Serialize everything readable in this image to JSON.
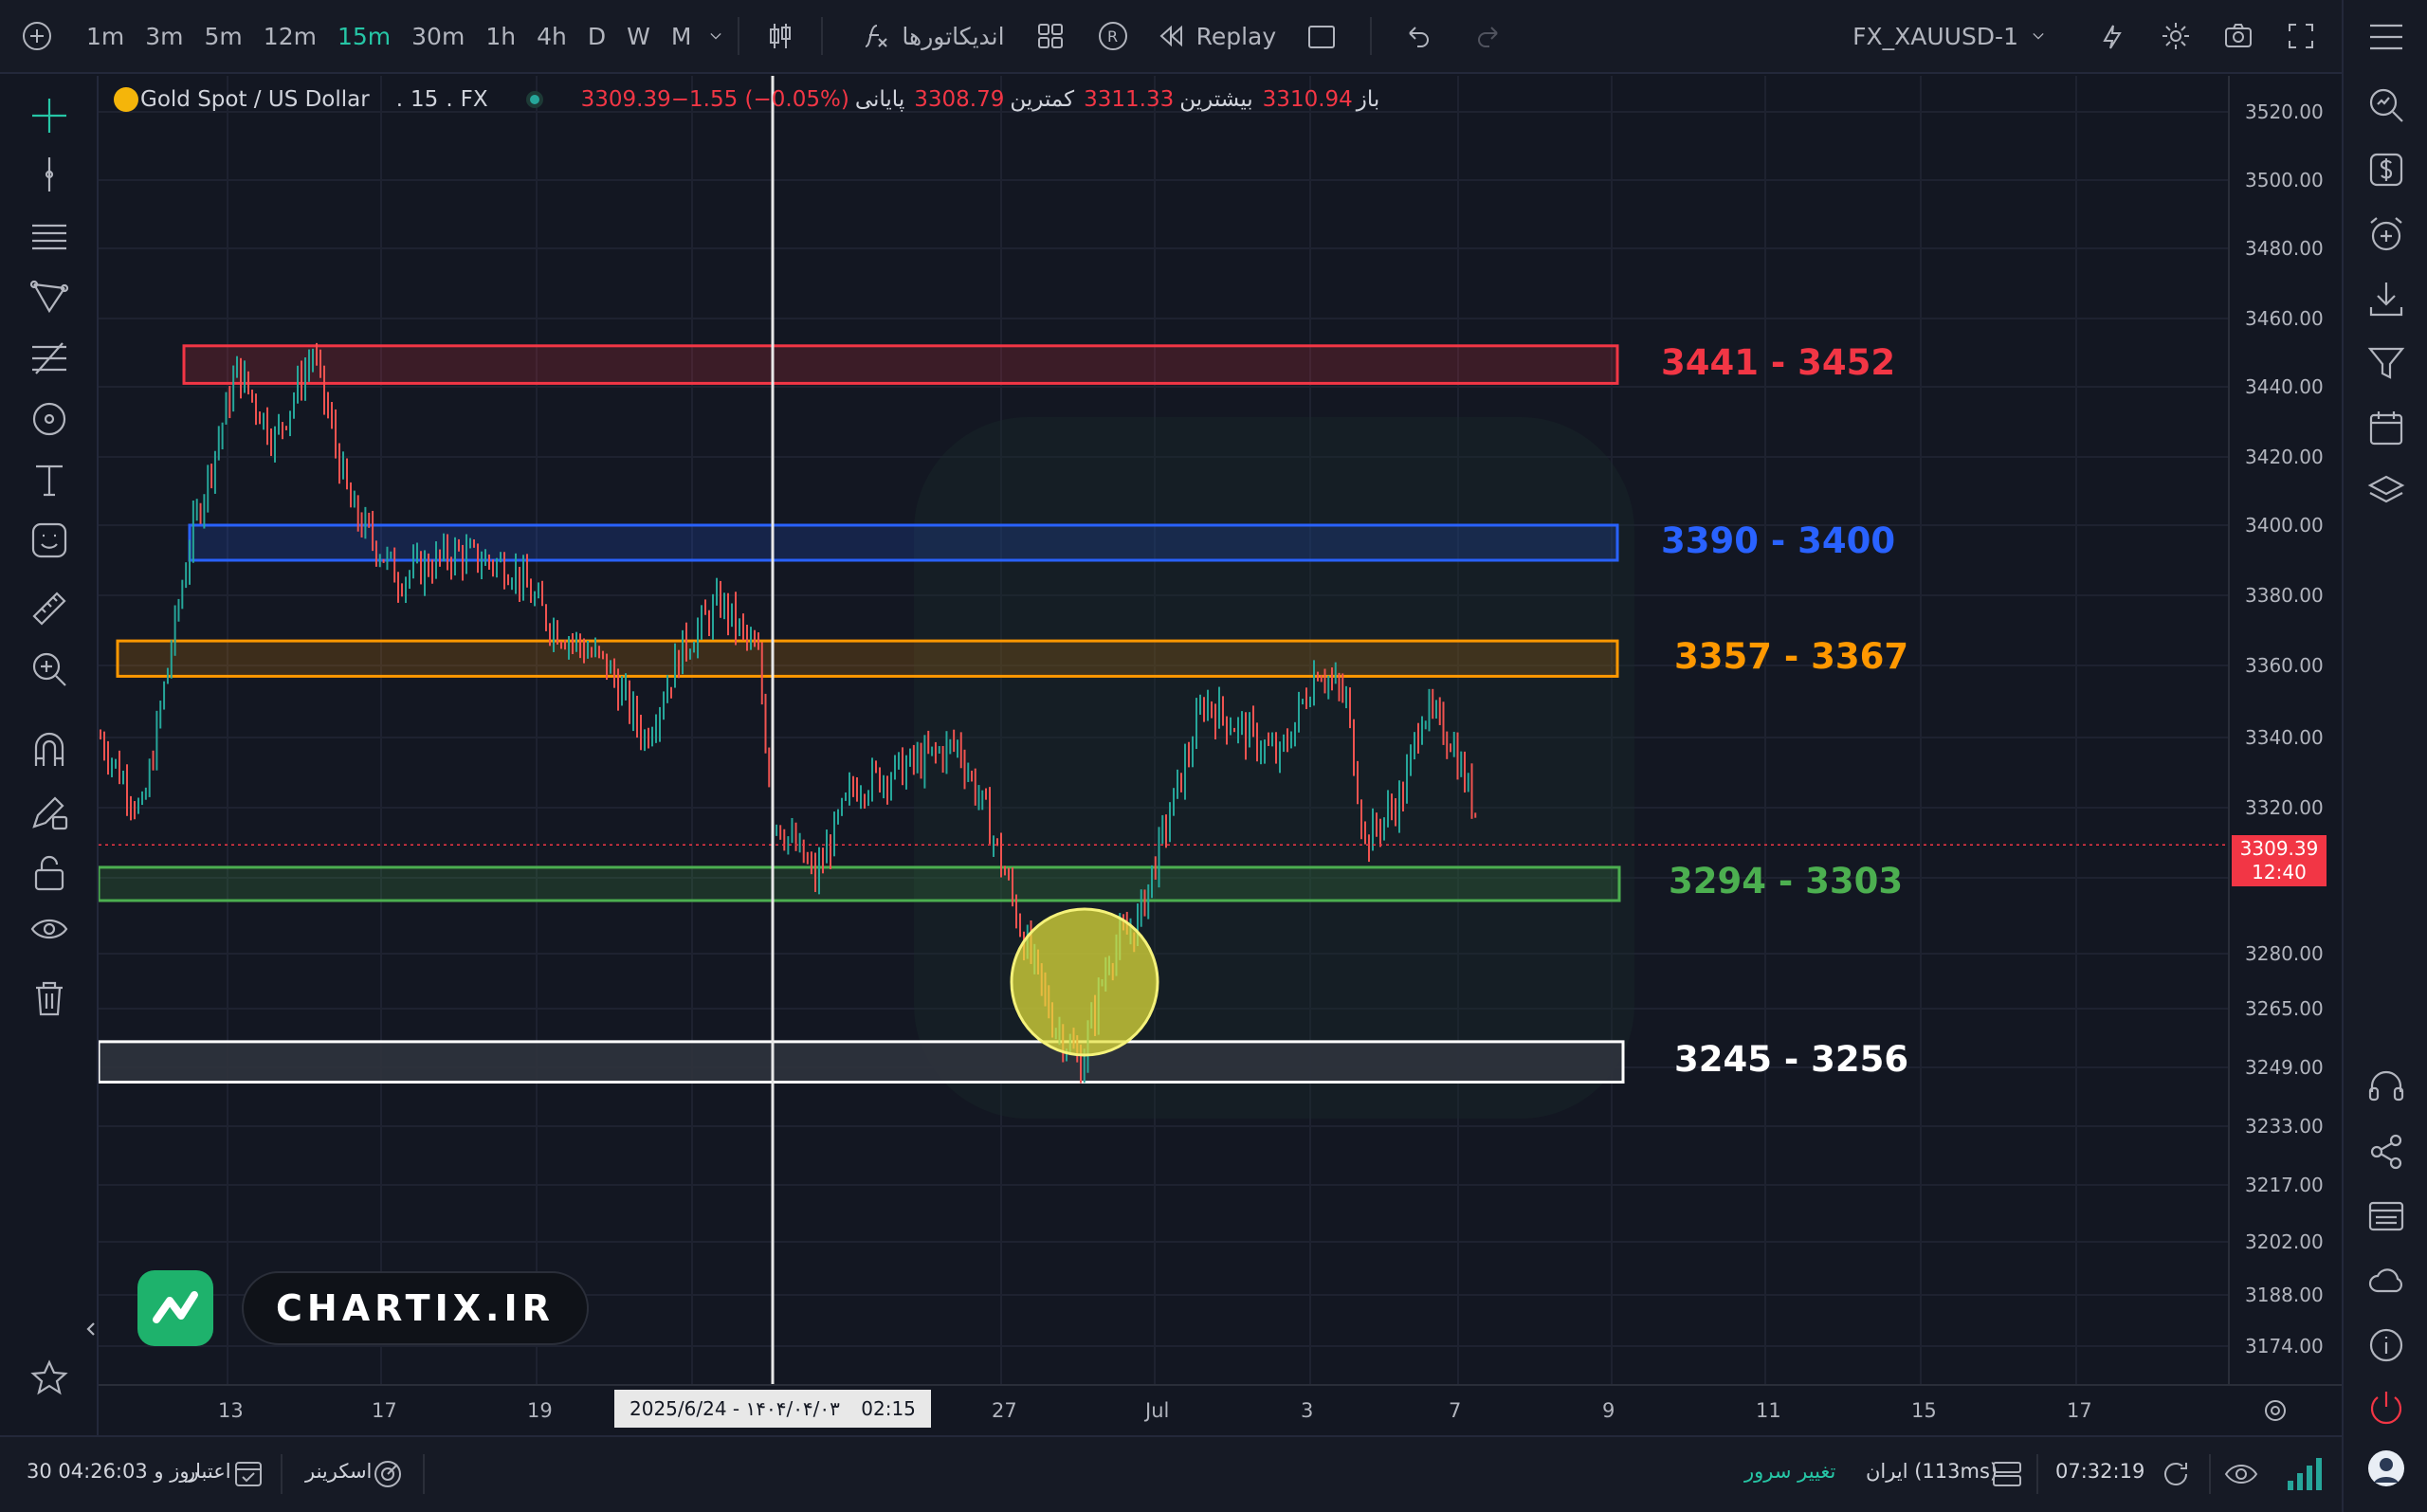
{
  "toolbar": {
    "timeframes": [
      "1m",
      "3m",
      "5m",
      "12m",
      "15m",
      "30m",
      "1h",
      "4h",
      "D",
      "W",
      "M"
    ],
    "active_timeframe": "15m",
    "indicators_label": "اندیکاتورها",
    "replay_label": "Replay",
    "symbol": "FX_XAUUSD-1"
  },
  "legend": {
    "symbol_name": "Gold Spot / US Dollar",
    "interval": "15",
    "exchange": "FX",
    "open_label": "باز",
    "open_value": "3310.94",
    "high_label": "بیشترین",
    "high_value": "3311.33",
    "low_label": "کمترین",
    "low_value": "3308.79",
    "close_label": "پایانی",
    "close_value": "3309.39",
    "change": "−1.55 (−0.05%)"
  },
  "price_axis": {
    "ticks": [
      "3520.00",
      "3500.00",
      "3480.00",
      "3460.00",
      "3440.00",
      "3420.00",
      "3400.00",
      "3380.00",
      "3360.00",
      "3340.00",
      "3320.00",
      "3300.00",
      "3280.00",
      "3265.00",
      "3249.00",
      "3233.00",
      "3217.00",
      "3202.00",
      "3188.00",
      "3174.00"
    ],
    "last_price": "3309.39",
    "countdown": "12:40"
  },
  "time_axis": {
    "ticks": [
      "13",
      "17",
      "19",
      "27",
      "Jul",
      "3",
      "7",
      "9",
      "11",
      "15",
      "17"
    ],
    "crosshair_date": "2025/6/24 - ۱۴۰۴/۰۴/۰۳",
    "crosshair_time": "02:15"
  },
  "zones": [
    {
      "label": "3441 - 3452",
      "color": "#f23645",
      "low": 3441,
      "high": 3452
    },
    {
      "label": "3390 - 3400",
      "color": "#2962ff",
      "low": 3390,
      "high": 3400
    },
    {
      "label": "3357 - 3367",
      "color": "#ff9800",
      "low": 3357,
      "high": 3367
    },
    {
      "label": "3294 - 3303",
      "color": "#4caf50",
      "low": 3294,
      "high": 3303
    },
    {
      "label": "3245 - 3256",
      "color": "#ffffff",
      "low": 3245,
      "high": 3256
    }
  ],
  "watermark": {
    "text": "CHARTIX.IR"
  },
  "statusbar": {
    "credit_label": "اعتبار",
    "credit_value": "30 روز و 04:26:03",
    "screener_label": "اسکرینر",
    "server_change_label": "تغییر سرور",
    "server_info": "ایران (113ms)",
    "clock": "07:32:19"
  },
  "colors": {
    "up": "#26a69a",
    "down": "#ef5350",
    "background": "#131722",
    "accent": "#26c6a6"
  },
  "icons": [
    "plus-icon",
    "candles-icon",
    "indicators-icon",
    "layout-icon",
    "replay-icon",
    "undo-icon",
    "redo-icon",
    "alert-icon",
    "gear-icon",
    "camera-icon",
    "fullscreen-icon",
    "menu-icon"
  ]
}
